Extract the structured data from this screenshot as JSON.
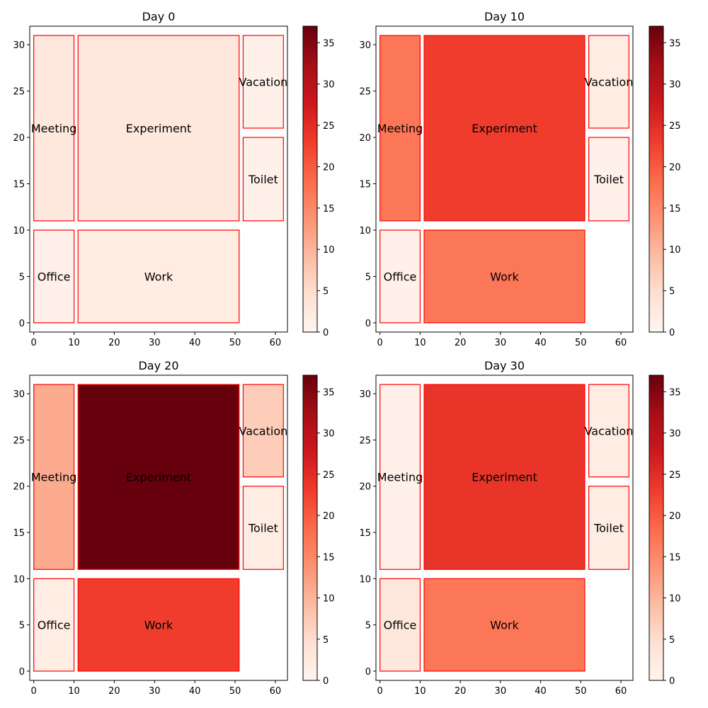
{
  "colormap": {
    "name": "Reds",
    "min": 0,
    "max": 37,
    "ticks": [
      0,
      5,
      10,
      15,
      20,
      25,
      30,
      35
    ],
    "edge_color": "#ff0000"
  },
  "chart_data": [
    {
      "type": "heatmap",
      "title": "Day 0",
      "xlim": [
        -1,
        63
      ],
      "ylim": [
        -1,
        32
      ],
      "xticks": [
        0,
        10,
        20,
        30,
        40,
        50,
        60
      ],
      "yticks": [
        0,
        5,
        10,
        15,
        20,
        25,
        30
      ],
      "rooms": [
        {
          "name": "Meeting",
          "x0": 0,
          "x1": 10,
          "y0": 11,
          "y1": 31,
          "value": 3
        },
        {
          "name": "Experiment",
          "x0": 11,
          "x1": 51,
          "y0": 11,
          "y1": 31,
          "value": 3
        },
        {
          "name": "Vacation",
          "x0": 52,
          "x1": 62,
          "y0": 21,
          "y1": 31,
          "value": 1
        },
        {
          "name": "Toilet",
          "x0": 52,
          "x1": 62,
          "y0": 11,
          "y1": 20,
          "value": 1
        },
        {
          "name": "Office",
          "x0": 0,
          "x1": 10,
          "y0": 0,
          "y1": 10,
          "value": 1
        },
        {
          "name": "Work",
          "x0": 11,
          "x1": 51,
          "y0": 0,
          "y1": 10,
          "value": 2
        }
      ]
    },
    {
      "type": "heatmap",
      "title": "Day 10",
      "xlim": [
        -1,
        63
      ],
      "ylim": [
        -1,
        32
      ],
      "xticks": [
        0,
        10,
        20,
        30,
        40,
        50,
        60
      ],
      "yticks": [
        0,
        5,
        10,
        15,
        20,
        25,
        30
      ],
      "rooms": [
        {
          "name": "Meeting",
          "x0": 0,
          "x1": 10,
          "y0": 11,
          "y1": 31,
          "value": 17
        },
        {
          "name": "Experiment",
          "x0": 11,
          "x1": 51,
          "y0": 11,
          "y1": 31,
          "value": 23
        },
        {
          "name": "Vacation",
          "x0": 52,
          "x1": 62,
          "y0": 21,
          "y1": 31,
          "value": 2
        },
        {
          "name": "Toilet",
          "x0": 52,
          "x1": 62,
          "y0": 11,
          "y1": 20,
          "value": 1
        },
        {
          "name": "Office",
          "x0": 0,
          "x1": 10,
          "y0": 0,
          "y1": 10,
          "value": 1
        },
        {
          "name": "Work",
          "x0": 11,
          "x1": 51,
          "y0": 0,
          "y1": 10,
          "value": 17
        }
      ]
    },
    {
      "type": "heatmap",
      "title": "Day 20",
      "xlim": [
        -1,
        63
      ],
      "ylim": [
        -1,
        32
      ],
      "xticks": [
        0,
        10,
        20,
        30,
        40,
        50,
        60
      ],
      "yticks": [
        0,
        5,
        10,
        15,
        20,
        25,
        30
      ],
      "rooms": [
        {
          "name": "Meeting",
          "x0": 0,
          "x1": 10,
          "y0": 11,
          "y1": 31,
          "value": 11
        },
        {
          "name": "Experiment",
          "x0": 11,
          "x1": 51,
          "y0": 11,
          "y1": 31,
          "value": 37
        },
        {
          "name": "Vacation",
          "x0": 52,
          "x1": 62,
          "y0": 21,
          "y1": 31,
          "value": 7
        },
        {
          "name": "Toilet",
          "x0": 52,
          "x1": 62,
          "y0": 11,
          "y1": 20,
          "value": 2
        },
        {
          "name": "Office",
          "x0": 0,
          "x1": 10,
          "y0": 0,
          "y1": 10,
          "value": 2
        },
        {
          "name": "Work",
          "x0": 11,
          "x1": 51,
          "y0": 0,
          "y1": 10,
          "value": 23
        }
      ]
    },
    {
      "type": "heatmap",
      "title": "Day 30",
      "xlim": [
        -1,
        63
      ],
      "ylim": [
        -1,
        32
      ],
      "xticks": [
        0,
        10,
        20,
        30,
        40,
        50,
        60
      ],
      "yticks": [
        0,
        5,
        10,
        15,
        20,
        25,
        30
      ],
      "rooms": [
        {
          "name": "Meeting",
          "x0": 0,
          "x1": 10,
          "y0": 11,
          "y1": 31,
          "value": 1
        },
        {
          "name": "Experiment",
          "x0": 11,
          "x1": 51,
          "y0": 11,
          "y1": 31,
          "value": 24
        },
        {
          "name": "Vacation",
          "x0": 52,
          "x1": 62,
          "y0": 21,
          "y1": 31,
          "value": 2
        },
        {
          "name": "Toilet",
          "x0": 52,
          "x1": 62,
          "y0": 11,
          "y1": 20,
          "value": 2
        },
        {
          "name": "Office",
          "x0": 0,
          "x1": 10,
          "y0": 0,
          "y1": 10,
          "value": 3
        },
        {
          "name": "Work",
          "x0": 11,
          "x1": 51,
          "y0": 0,
          "y1": 10,
          "value": 17
        }
      ]
    }
  ]
}
